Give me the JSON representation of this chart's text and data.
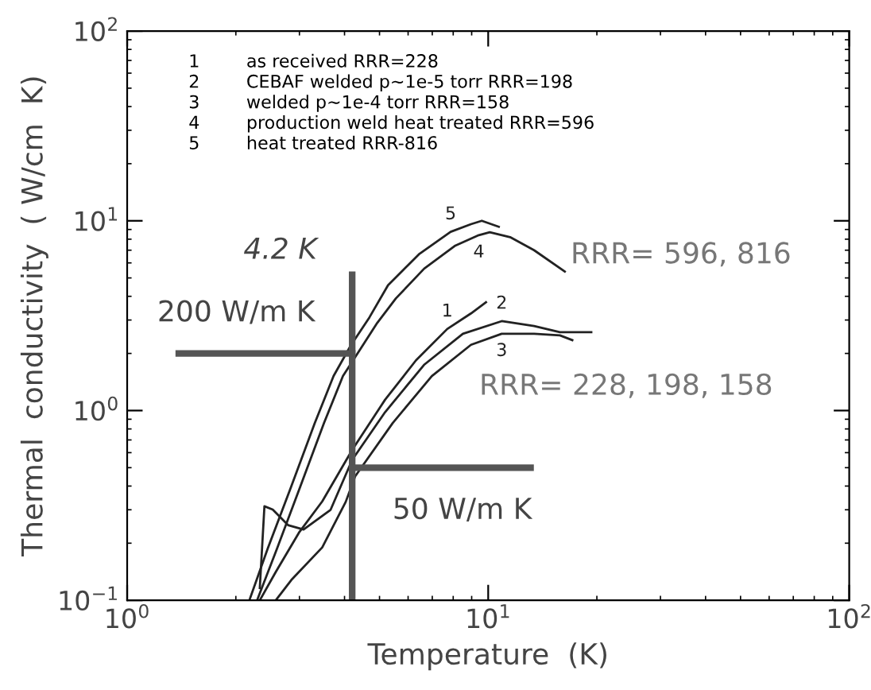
{
  "chart_data": {
    "type": "line",
    "xlabel": "Temperature  (K)",
    "ylabel": "Thermal  conductivity  ( W/cm  K)",
    "log": "xy",
    "grid": false,
    "marker": "none",
    "line_style": "solid",
    "xlim": [
      1,
      100
    ],
    "ylim": [
      0.1,
      100
    ],
    "xticks": [
      {
        "value": 1,
        "label": "10$^{0}$"
      },
      {
        "value": 10,
        "label": "10$^{1}$"
      },
      {
        "value": 100,
        "label": "10$^{2}$"
      }
    ],
    "yticks": [
      {
        "value": 0.1,
        "label": "10$^{−1}$"
      },
      {
        "value": 1,
        "label": "10$^{0}$"
      },
      {
        "value": 10,
        "label": "10$^{1}$"
      },
      {
        "value": 100,
        "label": "10$^{2}$"
      }
    ],
    "series": [
      {
        "color": "#222222",
        "x": [
          2.33,
          2.58,
          2.99,
          3.47,
          4.2,
          5.18,
          6.31,
          7.7,
          8.96,
          9.86
        ],
        "values": [
          0.1,
          0.141,
          0.227,
          0.332,
          0.62,
          1.14,
          1.84,
          2.69,
          3.25,
          3.72
        ]
      },
      {
        "color": "#222222",
        "x": [
          2.33,
          2.4,
          2.53,
          2.79,
          3.08,
          3.66,
          4.2,
          5.18,
          6.64,
          8.51,
          10.9,
          13.4,
          15.8,
          19.3
        ],
        "values": [
          0.116,
          0.313,
          0.301,
          0.249,
          0.236,
          0.3,
          0.55,
          0.98,
          1.74,
          2.54,
          2.96,
          2.79,
          2.59,
          2.59
        ]
      },
      {
        "color": "#222222",
        "x": [
          2.58,
          2.85,
          3.47,
          4.03,
          4.28,
          5.44,
          6.98,
          8.96,
          10.9,
          13.4,
          15.8,
          17.1
        ],
        "values": [
          0.1,
          0.128,
          0.19,
          0.33,
          0.45,
          0.86,
          1.52,
          2.22,
          2.54,
          2.54,
          2.49,
          2.35
        ]
      },
      {
        "color": "#222222",
        "x": [
          2.29,
          2.6,
          3.02,
          3.51,
          3.96,
          4.42,
          4.93,
          5.55,
          6.65,
          8.11,
          9.42,
          10.1,
          11.5,
          13.4,
          16.3
        ],
        "values": [
          0.1,
          0.187,
          0.4,
          0.86,
          1.52,
          2.1,
          2.9,
          3.9,
          5.6,
          7.4,
          8.4,
          8.7,
          8.2,
          7.0,
          5.4
        ]
      },
      {
        "color": "#222222",
        "x": [
          2.18,
          2.45,
          2.85,
          3.31,
          3.73,
          4.16,
          4.69,
          5.28,
          6.45,
          7.87,
          8.96,
          9.6,
          10.7
        ],
        "values": [
          0.1,
          0.187,
          0.4,
          0.86,
          1.52,
          2.2,
          3.1,
          4.58,
          6.7,
          8.75,
          9.6,
          10,
          9.3
        ]
      },
      {
        "color": "#555555",
        "x": [
          4.2,
          4.2
        ],
        "values": [
          0.1,
          5.2
        ]
      },
      {
        "color": "#555555",
        "x": [
          1.39,
          4.2
        ],
        "values": [
          2,
          2
        ]
      },
      {
        "color": "#555555",
        "x": [
          4.2,
          13.1
        ],
        "values": [
          0.5,
          0.5
        ]
      }
    ],
    "annotations": [
      "1 as received RRR=228",
      "2 CEBAF welded p~1e-5 torr RRR=198",
      "3 welded p~1e-4 torr RRR=158",
      "4 production weld heat treated RRR=596",
      "5 heat treated RRR-816",
      "4.2 K",
      "200 W/m K",
      "50 W/m K",
      "RRR= 596, 816",
      "RRR= 228, 198, 158",
      {
        "text": "1",
        "x": 7.7,
        "y": 2.69
      },
      {
        "text": "2",
        "x": 10.9,
        "y": 2.96
      },
      {
        "text": "3",
        "x": 10.9,
        "y": 2.54
      },
      {
        "text": "4",
        "x": 9.42,
        "y": 8.4
      },
      {
        "text": "5",
        "x": 7.87,
        "y": 8.75
      }
    ]
  }
}
